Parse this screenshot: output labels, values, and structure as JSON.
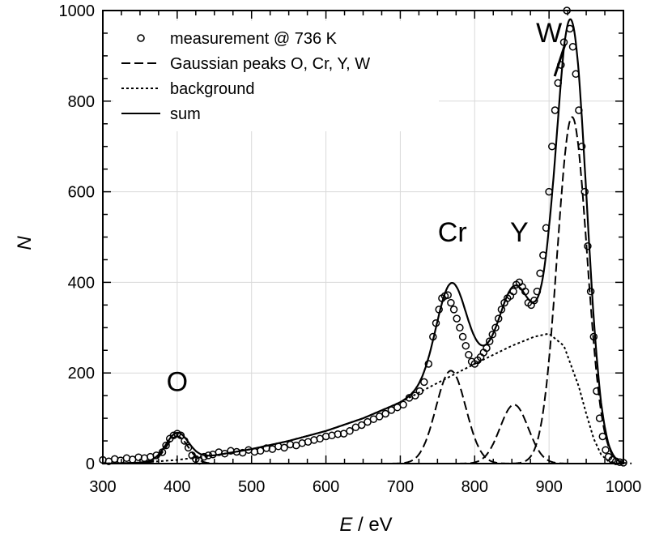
{
  "chart_data": {
    "type": "line",
    "title": "",
    "xlabel_var": "E",
    "xlabel_unit": " / eV",
    "ylabel": "N",
    "xlim": [
      300,
      1000
    ],
    "ylim": [
      0,
      1000
    ],
    "grid": true,
    "legend_position": "top-left",
    "xticks": [
      300,
      400,
      500,
      600,
      700,
      800,
      900,
      1000
    ],
    "yticks": [
      0,
      200,
      400,
      600,
      800,
      1000
    ],
    "xtick_labels": [
      "300",
      "400",
      "500",
      "600",
      "700",
      "800",
      "900",
      "1000"
    ],
    "ytick_labels": [
      "0",
      "200",
      "400",
      "600",
      "800",
      "1000"
    ],
    "legend": [
      {
        "label": "measurement @ 736 K",
        "style": "circle"
      },
      {
        "label": "Gaussian peaks O, Cr, Y, W",
        "style": "dashed"
      },
      {
        "label": "background",
        "style": "dotted"
      },
      {
        "label": "sum",
        "style": "solid"
      }
    ],
    "annotations": [
      {
        "text": "O",
        "x": 400,
        "y": 160
      },
      {
        "text": "Cr",
        "x": 770,
        "y": 490
      },
      {
        "text": "Y",
        "x": 860,
        "y": 490
      },
      {
        "text": "W",
        "x": 900,
        "y": 930,
        "arrow_to": [
          925,
          855
        ]
      }
    ],
    "background": {
      "x": [
        300,
        350,
        400,
        450,
        500,
        550,
        600,
        650,
        700,
        750,
        800,
        850,
        880,
        900,
        920,
        940,
        950,
        960,
        970,
        980,
        990,
        1000
      ],
      "y": [
        0,
        2,
        8,
        18,
        32,
        50,
        72,
        100,
        135,
        178,
        220,
        260,
        280,
        287,
        260,
        170,
        110,
        55,
        20,
        5,
        1,
        0
      ]
    },
    "gaussians": [
      {
        "name": "O",
        "center": 400,
        "amplitude": 60,
        "sigma": 15
      },
      {
        "name": "Cr",
        "center": 768,
        "amplitude": 205,
        "sigma": 20
      },
      {
        "name": "Y",
        "center": 853,
        "amplitude": 130,
        "sigma": 19
      },
      {
        "name": "W",
        "center": 931,
        "amplitude": 765,
        "sigma": 20
      }
    ],
    "measurement": {
      "x": [
        300,
        308,
        316,
        324,
        332,
        340,
        348,
        356,
        364,
        372,
        380,
        385,
        390,
        395,
        400,
        405,
        410,
        415,
        420,
        425,
        430,
        436,
        442,
        448,
        456,
        464,
        472,
        480,
        488,
        496,
        504,
        512,
        520,
        528,
        536,
        544,
        552,
        560,
        568,
        576,
        584,
        592,
        600,
        608,
        616,
        624,
        632,
        640,
        648,
        656,
        664,
        672,
        680,
        688,
        696,
        704,
        712,
        720,
        726,
        732,
        738,
        744,
        748,
        752,
        756,
        760,
        764,
        768,
        772,
        776,
        780,
        784,
        788,
        792,
        796,
        800,
        804,
        808,
        812,
        816,
        820,
        824,
        828,
        832,
        836,
        840,
        844,
        848,
        852,
        856,
        860,
        864,
        868,
        872,
        876,
        880,
        884,
        888,
        892,
        896,
        900,
        904,
        908,
        912,
        916,
        920,
        924,
        928,
        932,
        936,
        940,
        944,
        948,
        952,
        956,
        960,
        964,
        968,
        972,
        976,
        980,
        985,
        990,
        995,
        1000
      ],
      "y": [
        8,
        5,
        10,
        7,
        12,
        9,
        14,
        12,
        15,
        18,
        25,
        40,
        55,
        62,
        66,
        62,
        50,
        35,
        18,
        10,
        6,
        15,
        18,
        20,
        25,
        22,
        28,
        26,
        24,
        30,
        26,
        28,
        34,
        32,
        38,
        35,
        42,
        40,
        45,
        48,
        52,
        55,
        60,
        62,
        65,
        66,
        72,
        80,
        85,
        92,
        98,
        104,
        110,
        118,
        124,
        130,
        145,
        150,
        160,
        180,
        220,
        280,
        310,
        340,
        365,
        370,
        372,
        355,
        340,
        320,
        300,
        280,
        260,
        240,
        225,
        220,
        228,
        235,
        245,
        255,
        270,
        285,
        300,
        320,
        340,
        355,
        365,
        370,
        380,
        395,
        400,
        390,
        380,
        355,
        350,
        360,
        380,
        420,
        460,
        520,
        600,
        700,
        780,
        840,
        880,
        930,
        1000,
        960,
        920,
        860,
        780,
        700,
        600,
        480,
        380,
        280,
        160,
        100,
        60,
        30,
        15,
        8,
        5,
        3,
        2
      ]
    }
  }
}
